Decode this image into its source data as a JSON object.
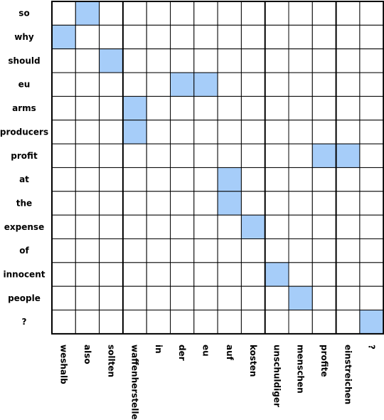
{
  "alignment": {
    "rows": [
      "so",
      "why",
      "should",
      "eu",
      "arms",
      "producers",
      "profit",
      "at",
      "the",
      "expense",
      "of",
      "innocent",
      "people",
      "?"
    ],
    "columns": [
      "weshalb",
      "also",
      "sollten",
      "waffenhersteller",
      "in",
      "der",
      "eu",
      "auf",
      "kosten",
      "unschuldiger",
      "menschen",
      "profite",
      "einstreichen",
      "?"
    ],
    "aligned_cells": [
      [
        0,
        1
      ],
      [
        1,
        0
      ],
      [
        2,
        2
      ],
      [
        3,
        5
      ],
      [
        3,
        6
      ],
      [
        4,
        3
      ],
      [
        5,
        3
      ],
      [
        6,
        11
      ],
      [
        6,
        12
      ],
      [
        7,
        7
      ],
      [
        8,
        7
      ],
      [
        9,
        8
      ],
      [
        11,
        9
      ],
      [
        12,
        10
      ],
      [
        13,
        13
      ]
    ],
    "colors": {
      "aligned": "#a6cdf9",
      "empty": "#ffffff",
      "border": "#000000"
    }
  }
}
